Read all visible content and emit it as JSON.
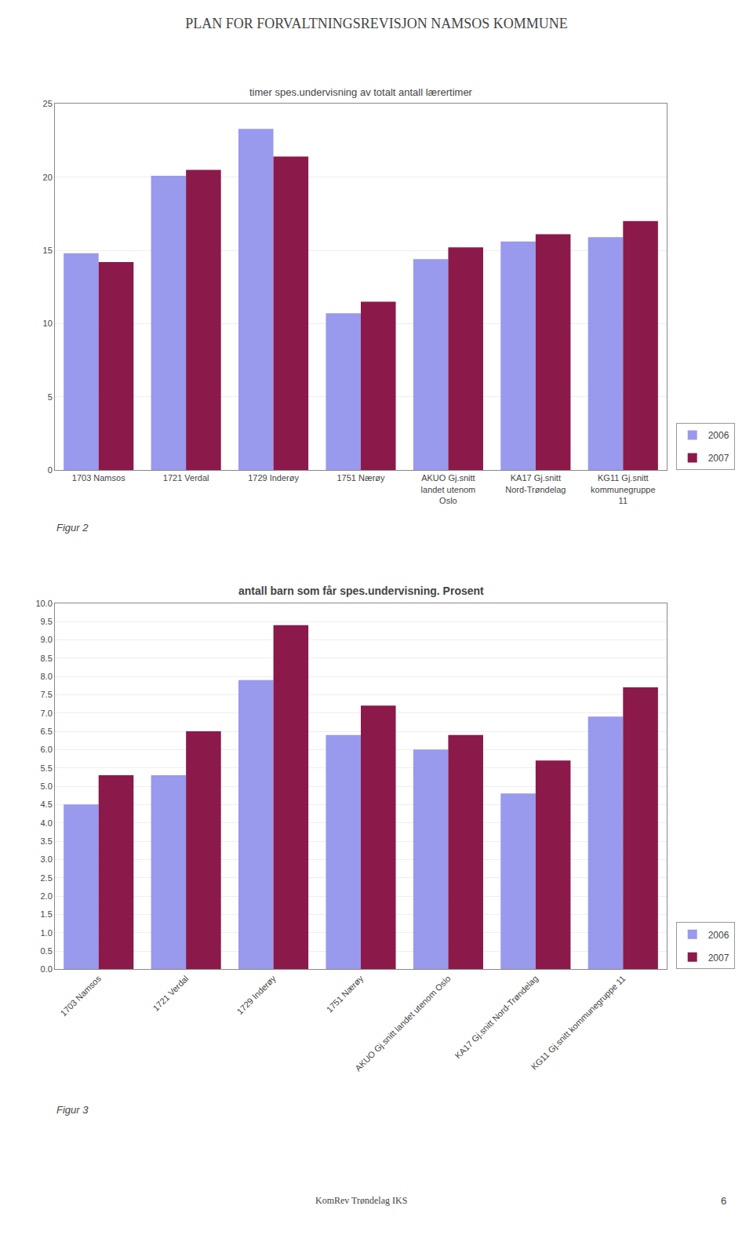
{
  "title": "PLAN FOR FORVALTNINGSREVISJON NAMSOS KOMMUNE",
  "annotations": [
    "KomRev Trøndelag IKS",
    "6"
  ],
  "chart_data": [
    {
      "type": "bar",
      "title": "timer spes.undervisning av totalt antall lærertimer",
      "categories": [
        "1703 Namsos",
        "1721 Verdal",
        "1729 Inderøy",
        "1751 Nærøy",
        "AKUO Gj.snitt\nlandet utenom\nOslo",
        "KA17 Gj.snitt\nNord-Trøndelag",
        "KG11 Gj.snitt\nkommunegruppe\n11"
      ],
      "series": [
        {
          "name": "2006",
          "color": "#9999EE",
          "values": [
            14.8,
            20.1,
            23.3,
            10.7,
            14.4,
            15.6,
            15.9
          ]
        },
        {
          "name": "2007",
          "color": "#8B1A4A",
          "values": [
            14.2,
            20.5,
            21.4,
            11.5,
            15.2,
            16.1,
            17.0
          ]
        }
      ],
      "ylim": [
        0,
        25
      ],
      "yticks": [
        0,
        5,
        10,
        15,
        20,
        25
      ],
      "grid": true,
      "legend": "lower right",
      "annotations": [
        "Figur 2"
      ]
    },
    {
      "type": "bar",
      "title": "antall barn som får spes.undervisning. Prosent",
      "categories": [
        "1703 Namsos",
        "1721 Verdal",
        "1729 Inderøy",
        "1751 Nærøy",
        "AKUO Gj.snitt landet utenom Oslo",
        "KA17 Gj.snitt Nord-Trøndelag",
        "KG11 Gj.snitt kommunegruppe 11"
      ],
      "series": [
        {
          "name": "2006",
          "color": "#9999EE",
          "values": [
            4.5,
            5.3,
            7.9,
            6.4,
            6.0,
            4.8,
            6.9
          ]
        },
        {
          "name": "2007",
          "color": "#8B1A4A",
          "values": [
            5.3,
            6.5,
            9.4,
            7.2,
            6.4,
            5.7,
            7.7
          ]
        }
      ],
      "ylim": [
        0,
        10
      ],
      "yticks": [
        {
          "value": 0,
          "label": "0.0"
        },
        {
          "value": 0.5,
          "label": "0.5"
        },
        {
          "value": 1,
          "label": "1.0"
        },
        {
          "value": 1.5,
          "label": "1.5"
        },
        {
          "value": 2,
          "label": "2.0"
        },
        {
          "value": 2.5,
          "label": "2.5"
        },
        {
          "value": 3,
          "label": "3.0"
        },
        {
          "value": 3.5,
          "label": "3.5"
        },
        {
          "value": 4,
          "label": "4.0"
        },
        {
          "value": 4.5,
          "label": "4.5"
        },
        {
          "value": 5,
          "label": "5.0"
        },
        {
          "value": 5.5,
          "label": "5.5"
        },
        {
          "value": 6,
          "label": "6.0"
        },
        {
          "value": 6.5,
          "label": "6.5"
        },
        {
          "value": 7,
          "label": "7.0"
        },
        {
          "value": 7.5,
          "label": "7.5"
        },
        {
          "value": 8,
          "label": "8.0"
        },
        {
          "value": 8.5,
          "label": "8.5"
        },
        {
          "value": 9,
          "label": "9.0"
        },
        {
          "value": 9.5,
          "label": "9.5"
        },
        {
          "value": 10,
          "label": "10.0"
        }
      ],
      "grid": true,
      "legend": "lower right",
      "annotations": [
        "Figur 3"
      ]
    }
  ]
}
